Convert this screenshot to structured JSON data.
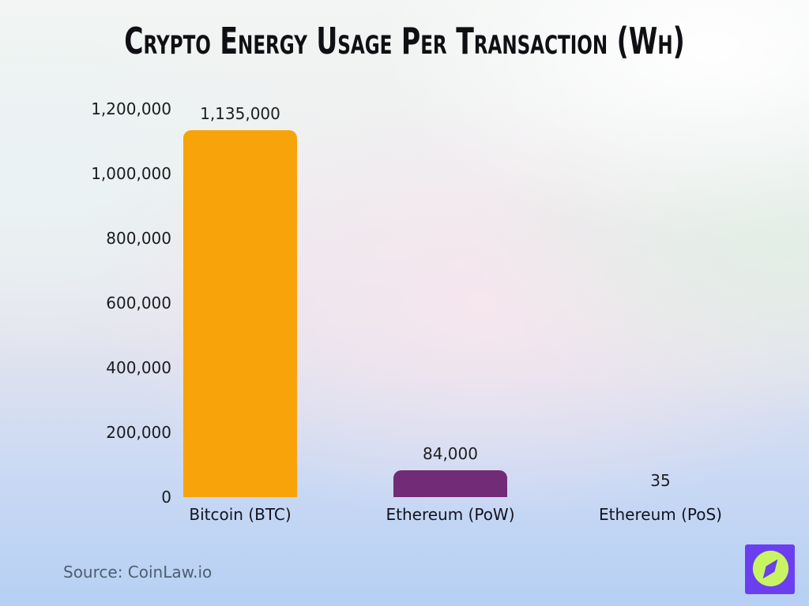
{
  "header": {
    "title": "Crypto Energy Usage Per Transaction (Wh)"
  },
  "chart_data": {
    "type": "bar",
    "title": "Crypto Energy Usage Per Transaction (Wh)",
    "unit": "Wh",
    "categories": [
      "Bitcoin (BTC)",
      "Ethereum (PoW)",
      "Ethereum (PoS)"
    ],
    "values": [
      1135000,
      84000,
      35
    ],
    "value_labels": [
      "1,135,000",
      "84,000",
      "35"
    ],
    "bar_colors": [
      "#F9A30B",
      "#722B76",
      "#722B76"
    ],
    "xlabel": "",
    "ylabel": "",
    "ylim": [
      0,
      1200000
    ],
    "y_ticks": [
      {
        "label": "0",
        "value": 0
      },
      {
        "label": "200,000",
        "value": 200000
      },
      {
        "label": "400,000",
        "value": 400000
      },
      {
        "label": "600,000",
        "value": 600000
      },
      {
        "label": "800,000",
        "value": 800000
      },
      {
        "label": "1,000,000",
        "value": 1000000
      },
      {
        "label": "1,200,000",
        "value": 1200000
      }
    ],
    "grid": false,
    "legend_position": "none"
  },
  "footer": {
    "source": "Source: CoinLaw.io"
  },
  "logo": {
    "name": "coinlaw-compass-logo",
    "square_color": "#6B3EF0",
    "circle_color": "#C8F464",
    "needle_color": "#6B3EF0"
  },
  "colors": {
    "title_text": "#101014",
    "axis_text": "#1b1b1f",
    "source_text": "#4d5e70",
    "background_bottom": "#B6D0F3"
  }
}
